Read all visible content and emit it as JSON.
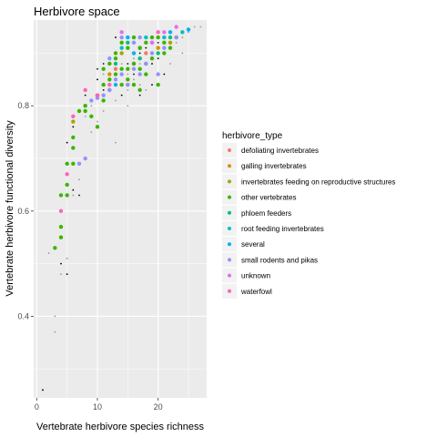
{
  "chart_data": {
    "type": "scatter",
    "title": "Herbivore space",
    "xlabel": "Vertebrate herbivore species richness",
    "ylabel": "Vertebrate herbivore functional diversity",
    "xlim": [
      -0.5,
      28
    ],
    "ylim": [
      0.245,
      0.963
    ],
    "xticks": [
      0,
      10,
      20
    ],
    "yticks": [
      0.4,
      0.6,
      0.8
    ],
    "grid": true,
    "panel_background": "#EBEBEB",
    "legend": {
      "title": "herbivore_type",
      "placement": "right",
      "entries": [
        {
          "label": "defoliating invertebrates",
          "color": "#F8766D"
        },
        {
          "label": "galling invertebrates",
          "color": "#D89000"
        },
        {
          "label": "invertebrates feeding on reproductive structures",
          "color": "#A3A500"
        },
        {
          "label": "other vertebrates",
          "color": "#39B600"
        },
        {
          "label": "phloem feeders",
          "color": "#00BF7D"
        },
        {
          "label": "root feeding invertebrates",
          "color": "#00BFC4"
        },
        {
          "label": "several",
          "color": "#00B0F6"
        },
        {
          "label": "small rodents and pikas",
          "color": "#9590FF"
        },
        {
          "label": "unknown",
          "color": "#E76BF3"
        },
        {
          "label": "waterfowl",
          "color": "#FF62BC"
        }
      ]
    },
    "background_points": {
      "color": "#999999",
      "points": [
        [
          1,
          0.26
        ],
        [
          2,
          0.52
        ],
        [
          3,
          0.4
        ],
        [
          3,
          0.37
        ],
        [
          3,
          0.53
        ],
        [
          4,
          0.48
        ],
        [
          4,
          0.55
        ],
        [
          5,
          0.51
        ],
        [
          6,
          0.63
        ],
        [
          7,
          0.66
        ],
        [
          8,
          0.7
        ],
        [
          9,
          0.75
        ],
        [
          10,
          0.77
        ],
        [
          11,
          0.79
        ],
        [
          13,
          0.73
        ],
        [
          13,
          0.81
        ],
        [
          14,
          0.84
        ],
        [
          15,
          0.86
        ],
        [
          15,
          0.8
        ],
        [
          16,
          0.85
        ],
        [
          17,
          0.88
        ],
        [
          18,
          0.83
        ],
        [
          19,
          0.88
        ],
        [
          20,
          0.9
        ],
        [
          21,
          0.86
        ],
        [
          22,
          0.91
        ],
        [
          23,
          0.92
        ],
        [
          24,
          0.93
        ],
        [
          25,
          0.94
        ],
        [
          26,
          0.95
        ],
        [
          27,
          0.95
        ],
        [
          12,
          0.83
        ],
        [
          11,
          0.86
        ],
        [
          14,
          0.88
        ],
        [
          16,
          0.92
        ],
        [
          18,
          0.92
        ],
        [
          20,
          0.94
        ],
        [
          15,
          0.83
        ],
        [
          17,
          0.84
        ],
        [
          22,
          0.88
        ],
        [
          24,
          0.9
        ],
        [
          19,
          0.84
        ],
        [
          13,
          0.85
        ],
        [
          21,
          0.93
        ],
        [
          10,
          0.82
        ],
        [
          9,
          0.8
        ],
        [
          8,
          0.78
        ],
        [
          16,
          0.89
        ]
      ]
    },
    "black_points": {
      "color": "#000000",
      "points": [
        [
          1,
          0.26
        ],
        [
          4,
          0.5
        ],
        [
          5,
          0.48
        ],
        [
          6,
          0.64
        ],
        [
          7,
          0.63
        ],
        [
          5,
          0.73
        ],
        [
          6,
          0.76
        ],
        [
          8,
          0.82
        ],
        [
          10,
          0.85
        ],
        [
          11,
          0.88
        ],
        [
          12,
          0.86
        ],
        [
          13,
          0.89
        ],
        [
          14,
          0.91
        ],
        [
          15,
          0.88
        ],
        [
          16,
          0.86
        ],
        [
          17,
          0.9
        ],
        [
          18,
          0.91
        ],
        [
          19,
          0.88
        ],
        [
          20,
          0.89
        ],
        [
          21,
          0.86
        ],
        [
          12,
          0.83
        ],
        [
          13,
          0.84
        ],
        [
          14,
          0.82
        ],
        [
          15,
          0.91
        ],
        [
          16,
          0.84
        ],
        [
          17,
          0.82
        ],
        [
          18,
          0.86
        ],
        [
          19,
          0.84
        ],
        [
          20,
          0.92
        ],
        [
          10,
          0.87
        ],
        [
          11,
          0.83
        ],
        [
          13,
          0.93
        ]
      ]
    },
    "series": [
      {
        "name": "defoliating invertebrates",
        "color": "#F8766D",
        "points": [
          [
            13,
            0.87
          ],
          [
            16,
            0.88
          ],
          [
            18,
            0.9
          ]
        ]
      },
      {
        "name": "galling invertebrates",
        "color": "#D89000",
        "points": [
          [
            12,
            0.86
          ],
          [
            15,
            0.84
          ],
          [
            20,
            0.91
          ]
        ]
      },
      {
        "name": "invertebrates feeding on reproductive structures",
        "color": "#A3A500",
        "points": [
          [
            6,
            0.77
          ],
          [
            10,
            0.82
          ],
          [
            14,
            0.9
          ],
          [
            17,
            0.91
          ],
          [
            22,
            0.92
          ]
        ]
      },
      {
        "name": "other vertebrates",
        "color": "#39B600",
        "points": [
          [
            3,
            0.53
          ],
          [
            4,
            0.55
          ],
          [
            4,
            0.57
          ],
          [
            4,
            0.63
          ],
          [
            5,
            0.63
          ],
          [
            5,
            0.65
          ],
          [
            5,
            0.69
          ],
          [
            6,
            0.69
          ],
          [
            6,
            0.72
          ],
          [
            6,
            0.74
          ],
          [
            7,
            0.79
          ],
          [
            8,
            0.8
          ],
          [
            8,
            0.79
          ],
          [
            9,
            0.78
          ],
          [
            10,
            0.76
          ],
          [
            10,
            0.82
          ],
          [
            11,
            0.84
          ],
          [
            11,
            0.87
          ],
          [
            12,
            0.83
          ],
          [
            12,
            0.88
          ],
          [
            13,
            0.86
          ],
          [
            13,
            0.9
          ],
          [
            14,
            0.84
          ],
          [
            14,
            0.92
          ],
          [
            15,
            0.85
          ],
          [
            15,
            0.91
          ],
          [
            16,
            0.84
          ],
          [
            16,
            0.88
          ],
          [
            17,
            0.83
          ],
          [
            17,
            0.91
          ],
          [
            18,
            0.86
          ],
          [
            18,
            0.92
          ],
          [
            19,
            0.89
          ],
          [
            20,
            0.84
          ],
          [
            20,
            0.93
          ],
          [
            21,
            0.92
          ],
          [
            22,
            0.91
          ],
          [
            23,
            0.93
          ],
          [
            15,
            0.87
          ],
          [
            16,
            0.93
          ],
          [
            17,
            0.87
          ],
          [
            19,
            0.93
          ],
          [
            12,
            0.85
          ],
          [
            14,
            0.87
          ],
          [
            11,
            0.81
          ],
          [
            13,
            0.89
          ],
          [
            18,
            0.88
          ],
          [
            21,
            0.9
          ]
        ]
      },
      {
        "name": "phloem feeders",
        "color": "#00BF7D",
        "points": [
          [
            13,
            0.88
          ],
          [
            15,
            0.92
          ],
          [
            17,
            0.89
          ],
          [
            20,
            0.9
          ],
          [
            22,
            0.93
          ]
        ]
      },
      {
        "name": "root feeding invertebrates",
        "color": "#00BFC4",
        "points": [
          [
            14,
            0.91
          ],
          [
            18,
            0.93
          ],
          [
            21,
            0.93
          ],
          [
            24,
            0.94
          ]
        ]
      },
      {
        "name": "several",
        "color": "#00B0F6",
        "points": [
          [
            13,
            0.84
          ],
          [
            15,
            0.93
          ],
          [
            16,
            0.9
          ],
          [
            19,
            0.92
          ],
          [
            22,
            0.94
          ],
          [
            25,
            0.945
          ]
        ]
      },
      {
        "name": "small rodents and pikas",
        "color": "#9590FF",
        "points": [
          [
            7,
            0.69
          ],
          [
            8,
            0.7
          ],
          [
            9,
            0.81
          ],
          [
            10,
            0.815
          ],
          [
            11,
            0.82
          ],
          [
            12,
            0.83
          ],
          [
            13,
            0.85
          ],
          [
            14,
            0.86
          ],
          [
            15,
            0.84
          ],
          [
            16,
            0.87
          ],
          [
            17,
            0.86
          ],
          [
            18,
            0.88
          ],
          [
            19,
            0.9
          ],
          [
            21,
            0.91
          ],
          [
            23,
            0.93
          ],
          [
            17,
            0.93
          ],
          [
            14,
            0.93
          ],
          [
            12,
            0.89
          ],
          [
            20,
            0.86
          ],
          [
            16,
            0.92
          ]
        ]
      },
      {
        "name": "unknown",
        "color": "#E76BF3",
        "points": [
          [
            14,
            0.94
          ],
          [
            19,
            0.92
          ],
          [
            21,
            0.94
          ],
          [
            23,
            0.95
          ]
        ]
      },
      {
        "name": "waterfowl",
        "color": "#FF62BC",
        "points": [
          [
            4,
            0.6
          ],
          [
            5,
            0.67
          ],
          [
            6,
            0.78
          ],
          [
            8,
            0.83
          ],
          [
            10,
            0.82
          ],
          [
            12,
            0.84
          ],
          [
            20,
            0.94
          ]
        ]
      }
    ]
  }
}
